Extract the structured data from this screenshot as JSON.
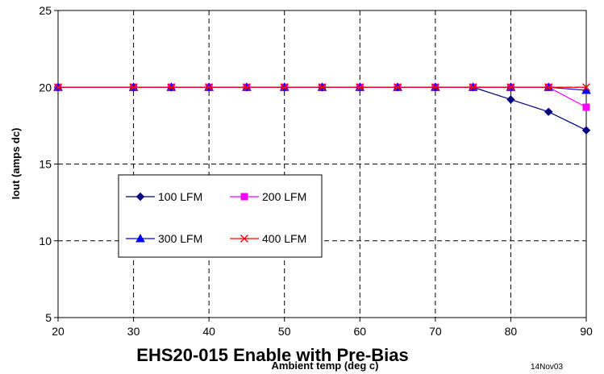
{
  "chart_data": {
    "type": "line",
    "title": "EHS20-015 Enable with Pre-Bias",
    "xlabel": "Ambient temp (deg c)",
    "ylabel": "Iout (amps dc)",
    "date_stamp": "14Nov03",
    "xlim": [
      20,
      90
    ],
    "ylim": [
      5,
      25
    ],
    "x_ticks": [
      20,
      30,
      40,
      50,
      60,
      70,
      80,
      90
    ],
    "y_ticks": [
      5,
      10,
      15,
      20,
      25
    ],
    "grid": "dashed",
    "legend_position": "center-left",
    "x": [
      20,
      30,
      35,
      40,
      45,
      50,
      55,
      60,
      65,
      70,
      75,
      80,
      85,
      90
    ],
    "series": [
      {
        "name": "100 LFM",
        "color": "#000080",
        "marker": "diamond",
        "values": [
          20,
          20,
          20,
          20,
          20,
          20,
          20,
          20,
          20,
          20,
          20,
          19.2,
          18.4,
          17.2
        ]
      },
      {
        "name": "200 LFM",
        "color": "#ff00ff",
        "marker": "square",
        "values": [
          20,
          20,
          20,
          20,
          20,
          20,
          20,
          20,
          20,
          20,
          20,
          20,
          20,
          18.7
        ]
      },
      {
        "name": "300 LFM",
        "color": "#0000ff",
        "marker": "triangle",
        "values": [
          20,
          20,
          20,
          20,
          20,
          20,
          20,
          20,
          20,
          20,
          20,
          20,
          20,
          19.8
        ]
      },
      {
        "name": "400 LFM",
        "color": "#ff0000",
        "marker": "x",
        "values": [
          20,
          20,
          20,
          20,
          20,
          20,
          20,
          20,
          20,
          20,
          20,
          20,
          20,
          20
        ]
      }
    ]
  }
}
